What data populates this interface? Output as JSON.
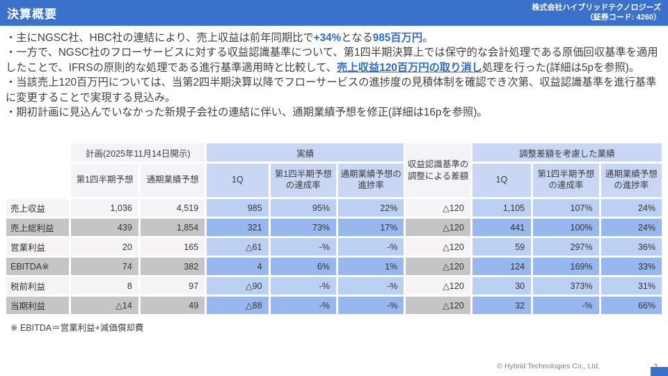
{
  "header": {
    "title": "決算概要",
    "company": "株式会社ハイブリッドテクノロジーズ",
    "code": "（証券コード: 4260）"
  },
  "colors": {
    "accent_blue": "#3a72cb",
    "highlight_text_blue": "#2a6bd2",
    "cell_light_blue": "#bcd0f3",
    "cell_mid_blue": "#97b7ee",
    "cell_light_gray": "#f5f3f6",
    "cell_gray": "#c5c4c6",
    "header_light_blue": "#c9d7f4",
    "header_light_gray": "#f4f3f7"
  },
  "bullets": [
    [
      {
        "text": "・主にNGSC社、HBC社の連結により、売上収益は前年同期比で"
      },
      {
        "text": "+34%",
        "style": "em"
      },
      {
        "text": "となる"
      },
      {
        "text": "985百万円",
        "style": "em"
      },
      {
        "text": "。"
      }
    ],
    [
      {
        "text": "・一方で、NGSC社のフローサービスに対する収益認識基準について、第1四半期決算上では保守的な会計処理である原価回収基準を適用したことで、IFRSの原則的な処理である進行基準適用時と比較して、"
      },
      {
        "text": "売上収益120百万円の取り消し",
        "style": "em-u"
      },
      {
        "text": "処理を行った(詳細は5pを参照)。"
      }
    ],
    [
      {
        "text": "・当該売上120百万円については、当第2四半期決算以降でフローサービスの進捗度の見積体制を確認でき次第、収益認識基準を進行基準に変更することで実現する見込み。"
      }
    ],
    [
      {
        "text": "・期初計画に見込んでいなかった新規子会社の連結に伴い、通期業績予想を修正(詳細は16pを参照)。"
      }
    ]
  ],
  "table": {
    "groups": {
      "plan": "計画(2025年11月14日開示)",
      "actual": "実績",
      "adjustment": "収益認識基準の調整による差額",
      "adjusted": "調整差額を考慮した業績"
    },
    "sub_headers": {
      "plan": [
        "第1四半期予想",
        "通期業績予想"
      ],
      "actual": [
        "1Q",
        "第1四半期予想の達成率",
        "通期業績予想の進捗率"
      ],
      "adjusted": [
        "1Q",
        "第1四半期予想の達成率",
        "通期業績予想の進捗率"
      ]
    },
    "rows": [
      {
        "label": "売上収益",
        "plan": [
          "1,036",
          "4,519"
        ],
        "actual": [
          "985",
          "95%",
          "22%"
        ],
        "adjustment": "△120",
        "adjusted": [
          "1,105",
          "107%",
          "24%"
        ]
      },
      {
        "label": "売上総利益",
        "plan": [
          "439",
          "1,854"
        ],
        "actual": [
          "321",
          "73%",
          "17%"
        ],
        "adjustment": "△120",
        "adjusted": [
          "441",
          "100%",
          "24%"
        ]
      },
      {
        "label": "営業利益",
        "plan": [
          "20",
          "165"
        ],
        "actual": [
          "△61",
          "-%",
          "-%"
        ],
        "adjustment": "△120",
        "adjusted": [
          "59",
          "297%",
          "36%"
        ]
      },
      {
        "label": "EBITDA※",
        "plan": [
          "74",
          "382"
        ],
        "actual": [
          "4",
          "6%",
          "1%"
        ],
        "adjustment": "△120",
        "adjusted": [
          "124",
          "169%",
          "33%"
        ]
      },
      {
        "label": "税前利益",
        "plan": [
          "8",
          "97"
        ],
        "actual": [
          "△90",
          "-%",
          "-%"
        ],
        "adjustment": "△120",
        "adjusted": [
          "30",
          "373%",
          "31%"
        ]
      },
      {
        "label": "当期利益",
        "plan": [
          "△14",
          "49"
        ],
        "actual": [
          "△88",
          "-%",
          "-%"
        ],
        "adjustment": "△120",
        "adjusted": [
          "32",
          "-%",
          "66%"
        ]
      }
    ]
  },
  "footnote": "※ EBITDA＝営業利益+減価償却費",
  "footer": {
    "copyright": "© Hybrid Technologies Co., Ltd.",
    "page": "3"
  }
}
